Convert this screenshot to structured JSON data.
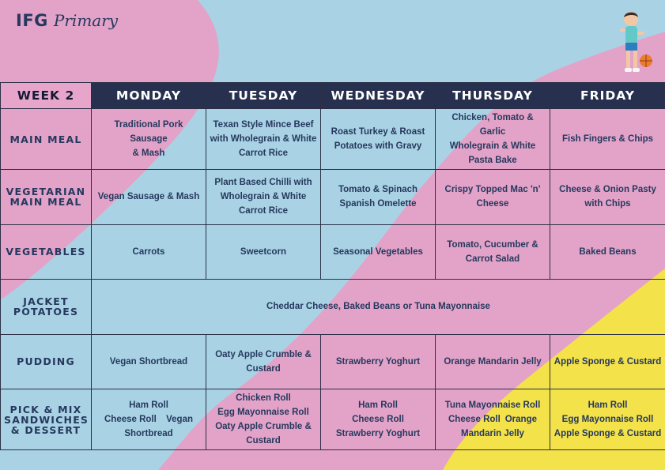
{
  "brand": {
    "name_bold": "IFG",
    "name_script": "Primary"
  },
  "header": {
    "week": "WEEK 2",
    "days": [
      "MONDAY",
      "TUESDAY",
      "WEDNESDAY",
      "THURSDAY",
      "FRIDAY"
    ]
  },
  "rows": {
    "main_meal": {
      "label": "MAIN MEAL",
      "cells": [
        [
          "Traditional Pork Sausage",
          "& Mash"
        ],
        [
          "Texan Style Mince Beef",
          "with Wholegrain & White",
          "Carrot Rice"
        ],
        [
          "Roast Turkey & Roast",
          "Potatoes with Gravy"
        ],
        [
          "Chicken, Tomato & Garlic",
          "Wholegrain & White",
          "Pasta Bake"
        ],
        [
          "Fish Fingers & Chips"
        ]
      ]
    },
    "vegetarian": {
      "label_lines": [
        "VEGETARIAN",
        "MAIN MEAL"
      ],
      "cells": [
        [
          "Vegan Sausage & Mash"
        ],
        [
          "Plant Based Chilli with",
          "Wholegrain & White",
          "Carrot Rice"
        ],
        [
          "Tomato & Spinach",
          "Spanish Omelette"
        ],
        [
          "Crispy Topped Mac 'n'",
          "Cheese"
        ],
        [
          "Cheese & Onion Pasty",
          "with Chips"
        ]
      ]
    },
    "vegetables": {
      "label": "VEGETABLES",
      "cells": [
        [
          "Carrots"
        ],
        [
          "Sweetcorn"
        ],
        [
          "Seasonal Vegetables"
        ],
        [
          "Tomato, Cucumber &",
          "Carrot Salad"
        ],
        [
          "Baked Beans"
        ]
      ]
    },
    "jacket": {
      "label_lines": [
        "JACKET",
        "POTATOES"
      ],
      "text": "Cheddar Cheese, Baked Beans or Tuna Mayonnaise"
    },
    "pudding": {
      "label": "PUDDING",
      "cells": [
        [
          "Vegan Shortbread"
        ],
        [
          "Oaty Apple Crumble &",
          "Custard"
        ],
        [
          "Strawberry Yoghurt"
        ],
        [
          "Orange Mandarin Jelly"
        ],
        [
          "Apple Sponge & Custard"
        ]
      ]
    },
    "pick_mix": {
      "label_lines": [
        "PICK & MIX",
        "SANDWICHES",
        "& DESSERT"
      ],
      "monday": {
        "line1": "Ham Roll",
        "line2_left": "Cheese Roll",
        "line2_right": "Vegan",
        "line3": "Shortbread"
      },
      "tuesday": [
        "Chicken Roll",
        "Egg Mayonnaise Roll",
        "Oaty Apple Crumble &",
        "Custard"
      ],
      "wednesday": [
        "Ham Roll",
        "Cheese Roll",
        "Strawberry Yoghurt"
      ],
      "thursday": {
        "line1": "Tuna Mayonnaise Roll",
        "line2_left": "Cheese Roll",
        "line2_right": "Orange",
        "line3": "Mandarin Jelly"
      },
      "friday": [
        "Ham Roll",
        "Egg Mayonnaise Roll",
        "Apple Sponge & Custard"
      ]
    }
  },
  "colors": {
    "pink": "#e3a3c8",
    "blue": "#a9d3e4",
    "yellow": "#f3e24a",
    "navy": "#27304f",
    "text": "#26385e"
  },
  "decorations": {
    "mascot": "boy-with-basketball-icon"
  }
}
